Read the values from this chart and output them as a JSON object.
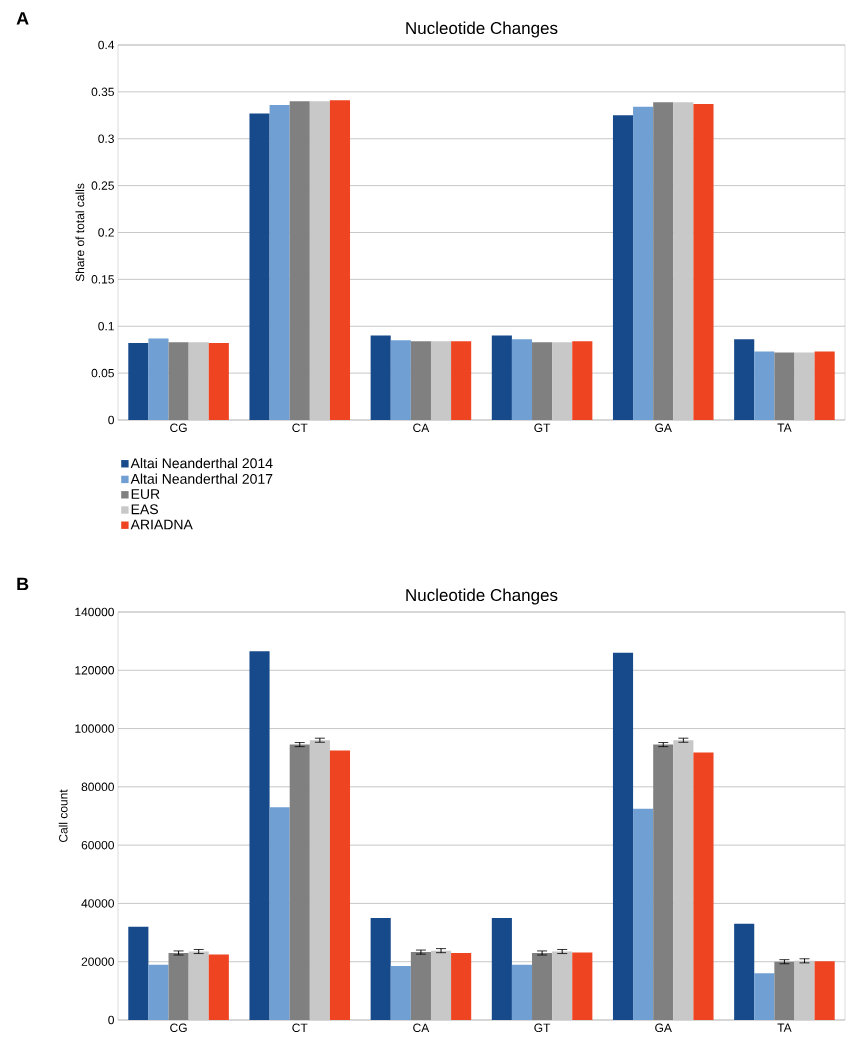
{
  "chart_data": [
    {
      "type": "bar",
      "title": "Nucleotide Changes",
      "ylabel": "Share of total calls",
      "annotations": [
        "A"
      ],
      "categories": [
        "CG",
        "CT",
        "CA",
        "GT",
        "GA",
        "TA"
      ],
      "series": [
        {
          "name": "Altai Neanderthal 2014",
          "color": "#174a8b",
          "values": [
            0.082,
            0.327,
            0.09,
            0.09,
            0.325,
            0.086
          ]
        },
        {
          "name": "Altai Neanderthal 2017",
          "color": "#6f9fd3",
          "values": [
            0.087,
            0.336,
            0.085,
            0.086,
            0.334,
            0.073
          ]
        },
        {
          "name": "EUR",
          "color": "#808080",
          "values": [
            0.083,
            0.34,
            0.084,
            0.083,
            0.339,
            0.072
          ]
        },
        {
          "name": "EAS",
          "color": "#c8c8c8",
          "values": [
            0.083,
            0.34,
            0.084,
            0.083,
            0.339,
            0.072
          ]
        },
        {
          "name": "ARIADNA",
          "color": "#ee4422",
          "values": [
            0.082,
            0.341,
            0.084,
            0.084,
            0.337,
            0.073
          ]
        }
      ],
      "ylim": [
        0,
        0.4
      ],
      "yticks": [
        0,
        0.05,
        0.1,
        0.15,
        0.2,
        0.25,
        0.3,
        0.35,
        0.4
      ],
      "grid": "y",
      "legend": "bottom left"
    },
    {
      "type": "bar",
      "title": "Nucleotide Changes",
      "ylabel": "Call count",
      "annotations": [
        "B"
      ],
      "categories": [
        "CG",
        "CT",
        "CA",
        "GT",
        "GA",
        "TA"
      ],
      "series": [
        {
          "color": "#174a8b",
          "values": [
            32000,
            126500,
            35000,
            35000,
            126000,
            33000
          ]
        },
        {
          "color": "#6f9fd3",
          "values": [
            19000,
            73000,
            18500,
            19000,
            72500,
            16000
          ]
        },
        {
          "color": "#808080",
          "values": [
            23000,
            94500,
            23300,
            23000,
            94500,
            20000
          ],
          "errors": [
            700,
            700,
            700,
            700,
            700,
            700
          ]
        },
        {
          "color": "#c8c8c8",
          "values": [
            23500,
            96000,
            23800,
            23500,
            96000,
            20300
          ],
          "errors": [
            700,
            700,
            700,
            700,
            700,
            700
          ]
        },
        {
          "color": "#ee4422",
          "values": [
            22500,
            92500,
            23000,
            23200,
            91800,
            20200
          ]
        }
      ],
      "ylim": [
        0,
        140000
      ],
      "yticks": [
        0,
        20000,
        40000,
        60000,
        80000,
        100000,
        120000,
        140000
      ],
      "grid": "y"
    }
  ]
}
